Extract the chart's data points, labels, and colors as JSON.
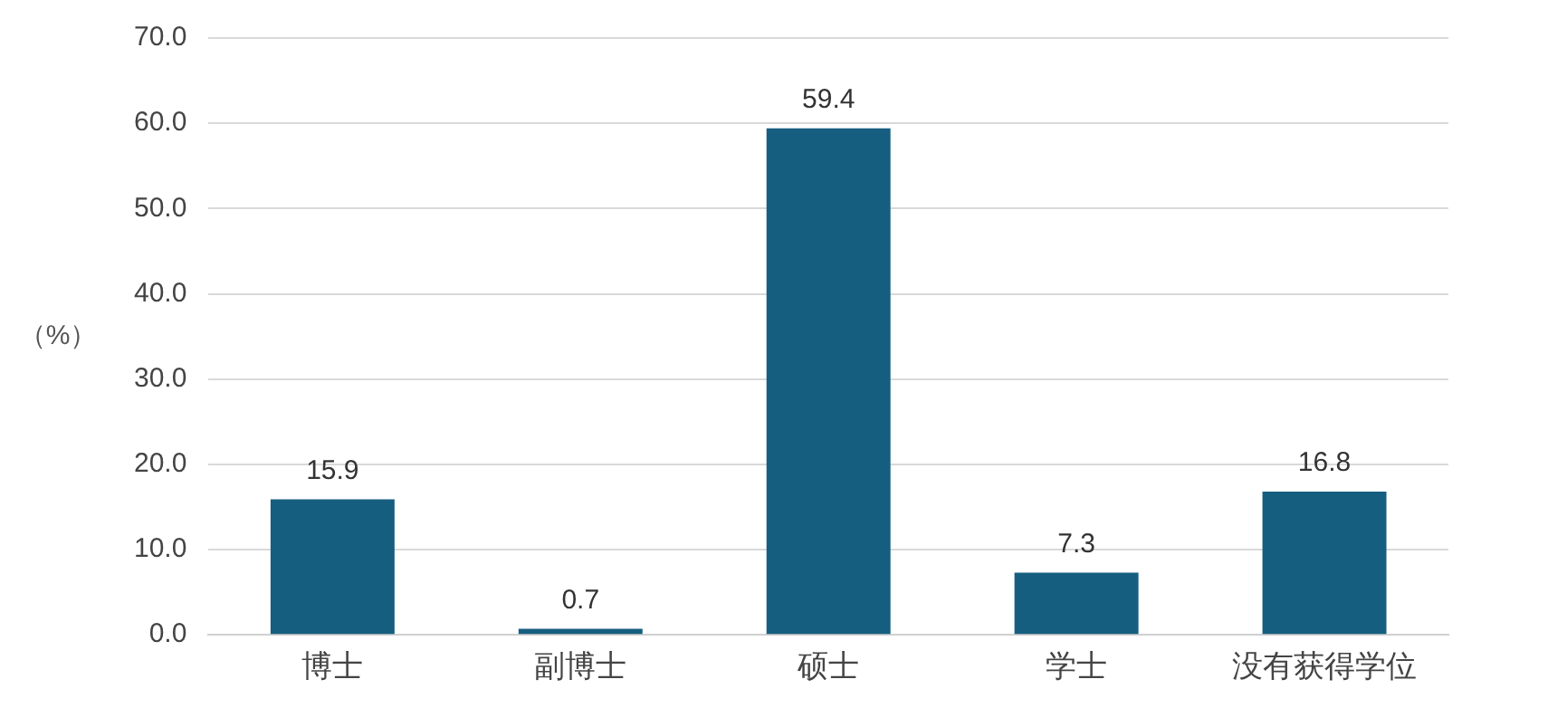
{
  "chart_data": {
    "type": "bar",
    "ylabel": "（%）",
    "categories": [
      "博士",
      "副博士",
      "硕士",
      "学士",
      "没有获得学位"
    ],
    "values": [
      15.9,
      0.7,
      59.4,
      7.3,
      16.8
    ],
    "color": "#165e80",
    "ylim": [
      0,
      70
    ],
    "yticks": [
      {
        "value": 0,
        "label": "0.0"
      },
      {
        "value": 10,
        "label": "10.0"
      },
      {
        "value": 20,
        "label": "20.0"
      },
      {
        "value": 30,
        "label": "30.0"
      },
      {
        "value": 40,
        "label": "40.0"
      },
      {
        "value": 50,
        "label": "50.0"
      },
      {
        "value": 60,
        "label": "60.0"
      },
      {
        "value": 70,
        "label": "70.0"
      }
    ],
    "grid": "y",
    "data_labels": true,
    "legend": false
  }
}
